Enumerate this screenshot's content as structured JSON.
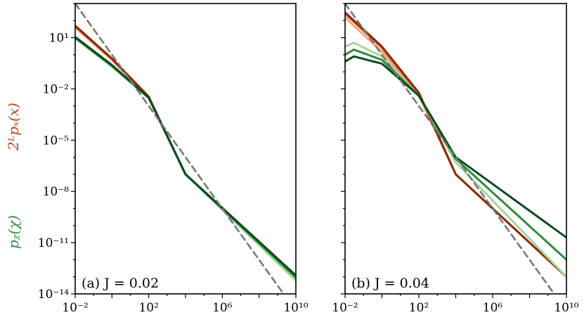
{
  "ylabel_top": "2ᴸpₓ(x)",
  "ylabel_bottom": "pᵪ(χ)",
  "ylabel_top_color": "#b5451b",
  "ylabel_bottom_color": "#2e8b3a",
  "chart_data": [
    {
      "type": "line",
      "panel_label": "(a) J = 0.02",
      "xscale": "log",
      "yscale": "log",
      "xlim": [
        0.01,
        10000000000
      ],
      "ylim": [
        1e-14,
        1000
      ],
      "x_tick_labels": [
        "10⁻²",
        "10²",
        "10⁶",
        "10¹⁰"
      ],
      "y_tick_labels": [
        "10¹",
        "10⁻²",
        "10⁻⁵",
        "10⁻⁸",
        "10⁻¹¹",
        "10⁻¹⁴"
      ],
      "series": [
        {
          "color": "#f4a582",
          "x": [
            0.01,
            1,
            100,
            10000,
            10000000000
          ],
          "y": [
            40,
            0.5,
            0.003,
            1e-07,
            1e-13
          ]
        },
        {
          "color": "#e06a32",
          "x": [
            0.01,
            1,
            100,
            10000,
            10000000000
          ],
          "y": [
            45,
            0.55,
            0.0032,
            1e-07,
            1e-13
          ]
        },
        {
          "color": "#8b2a0a",
          "x": [
            0.01,
            1,
            100,
            10000,
            10000000000
          ],
          "y": [
            50,
            0.6,
            0.0035,
            1e-07,
            1.2e-13
          ]
        },
        {
          "color": "#a1d99b",
          "x": [
            0.01,
            1,
            100,
            10000,
            10000000000
          ],
          "y": [
            9,
            0.2,
            0.003,
            1e-07,
            6e-14
          ]
        },
        {
          "color": "#2e8b3a",
          "x": [
            0.01,
            1,
            100,
            10000,
            10000000000
          ],
          "y": [
            10,
            0.22,
            0.003,
            1e-07,
            9e-14
          ]
        },
        {
          "color": "#0b4a1e",
          "x": [
            0.01,
            1,
            100,
            10000,
            10000000000
          ],
          "y": [
            11,
            0.25,
            0.003,
            1e-07,
            1.2e-13
          ]
        },
        {
          "color": "#777777",
          "dashed": true,
          "x": [
            0.01,
            10000000000
          ],
          "y": [
            1000,
            1e-15
          ]
        }
      ]
    },
    {
      "type": "line",
      "panel_label": "(b) J = 0.04",
      "xscale": "log",
      "yscale": "log",
      "xlim": [
        0.01,
        10000000000
      ],
      "ylim": [
        1e-14,
        1000
      ],
      "x_tick_labels": [
        "10⁻²",
        "10²",
        "10⁶",
        "10¹⁰"
      ],
      "series": [
        {
          "color": "#f4a582",
          "x": [
            0.01,
            1,
            100,
            10000,
            10000000000
          ],
          "y": [
            150,
            1.5,
            0.004,
            1e-07,
            1e-13
          ]
        },
        {
          "color": "#e06a32",
          "x": [
            0.01,
            1,
            100,
            10000,
            10000000000
          ],
          "y": [
            250,
            2.5,
            0.005,
            1e-07,
            1e-13
          ]
        },
        {
          "color": "#8b2a0a",
          "x": [
            0.01,
            1,
            100,
            10000,
            10000000000
          ],
          "y": [
            300,
            3,
            0.006,
            1e-07,
            1e-13
          ]
        },
        {
          "color": "#a1d99b",
          "x": [
            0.01,
            0.03,
            1,
            100,
            10000,
            10000000000
          ],
          "y": [
            3,
            5,
            0.8,
            0.004,
            5e-07,
            1e-13
          ]
        },
        {
          "color": "#2e8b3a",
          "x": [
            0.01,
            0.03,
            1,
            100,
            10000,
            10000000000
          ],
          "y": [
            1,
            2,
            0.5,
            0.004,
            8e-07,
            1e-12
          ]
        },
        {
          "color": "#0b4a1e",
          "x": [
            0.01,
            0.03,
            1,
            100,
            10000,
            10000000000
          ],
          "y": [
            0.4,
            0.8,
            0.3,
            0.004,
            1e-06,
            2e-11
          ]
        },
        {
          "color": "#777777",
          "dashed": true,
          "x": [
            0.01,
            10000000000
          ],
          "y": [
            1000,
            1e-15
          ]
        }
      ]
    }
  ]
}
